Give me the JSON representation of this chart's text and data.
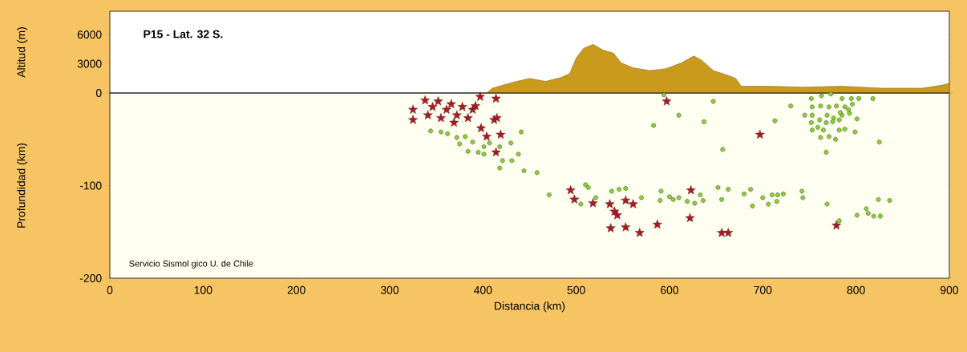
{
  "chart_data": [
    {
      "type": "area",
      "title": "P15 - Lat. 32 S.",
      "ylabel": "Altitud (m)",
      "color": "#c99a1c",
      "x": [
        404,
        410,
        432,
        450,
        467,
        484,
        493,
        500,
        508,
        518,
        529,
        540,
        548,
        561,
        579,
        596,
        613,
        626,
        634,
        647,
        660,
        671,
        677,
        707,
        742,
        785,
        828,
        871,
        892,
        900
      ],
      "values": [
        0,
        500,
        1100,
        1500,
        1200,
        1600,
        2000,
        3600,
        4600,
        5000,
        4400,
        4100,
        3100,
        2600,
        2300,
        2500,
        3100,
        3800,
        3400,
        2300,
        1900,
        1500,
        700,
        700,
        600,
        700,
        500,
        500,
        800,
        1000
      ],
      "xlim": [
        0,
        900
      ],
      "ylim": [
        0,
        8400
      ],
      "yticks": [
        0,
        3000,
        6000
      ],
      "tick_labels": "y"
    },
    {
      "type": "scatter",
      "ylabel": "Profundidad (km)",
      "xlabel": "Distancia (km)",
      "annotations": [
        "Servicio Sismol gico U. de Chile"
      ],
      "xlim": [
        0,
        900
      ],
      "ylim": [
        -200,
        0
      ],
      "xticks": [
        0,
        100,
        200,
        300,
        400,
        500,
        600,
        700,
        800,
        900
      ],
      "yticks": [
        -200,
        -100,
        {
          "value": 0,
          "label": null
        }
      ],
      "series": [
        {
          "color": "#8fcf3c",
          "marker": "circle",
          "x": [
            344,
            355,
            362,
            372,
            375,
            381,
            384,
            389,
            395,
            401,
            401,
            407,
            418,
            421,
            430,
            438,
            431,
            441,
            418,
            444,
            458,
            471,
            510,
            513,
            521,
            538,
            546,
            553,
            570,
            505,
            591,
            590,
            600,
            604,
            610,
            619,
            627,
            633,
            636,
            652,
            656,
            663,
            680,
            687,
            689,
            700,
            706,
            710,
            716,
            722,
            715,
            742,
            743,
            769,
            801,
            811,
            813,
            819,
            826,
            824,
            836,
            782,
            647,
            610,
            583,
            637,
            657,
            594,
            730,
            713,
            768,
            825,
            818,
            799,
            752,
            763,
            773,
            785,
            795,
            803,
            753,
            762,
            771,
            779,
            788,
            796,
            745,
            753,
            761,
            769,
            776,
            785,
            793,
            801,
            752,
            759,
            768,
            775,
            782,
            753,
            765,
            782,
            788,
            762,
            771,
            778,
            792,
            783
          ],
          "values": [
            -41,
            -42,
            -44,
            -48,
            -55,
            -47,
            -63,
            -53,
            -64,
            -58,
            -66,
            -54,
            -58,
            -73,
            -54,
            -66,
            -73,
            -42,
            -81,
            -84,
            -86,
            -110,
            -99,
            -102,
            -113,
            -106,
            -104,
            -103,
            -113,
            -120,
            -106,
            -116,
            -112,
            -115,
            -113,
            -117,
            -119,
            -110,
            -116,
            -102,
            -115,
            -104,
            -109,
            -104,
            -122,
            -113,
            -120,
            -110,
            -110,
            -109,
            -117,
            -106,
            -113,
            -120,
            -132,
            -125,
            -130,
            -133,
            -133,
            -115,
            -116,
            -138,
            -9,
            -24,
            -35,
            -31,
            -61,
            -2,
            -14,
            -30,
            -64,
            -53,
            -6,
            -42,
            -6,
            -3,
            -1,
            -6,
            -6,
            -6,
            -15,
            -14,
            -15,
            -14,
            -15,
            -12,
            -24,
            -24,
            -29,
            -24,
            -27,
            -24,
            -22,
            -28,
            -32,
            -37,
            -32,
            -31,
            -29,
            -40,
            -40,
            -40,
            -39,
            -48,
            -47,
            -50,
            -18,
            -21
          ]
        },
        {
          "color": "#a51c24",
          "marker": "star",
          "x": [
            325,
            325,
            338,
            341,
            346,
            352,
            355,
            361,
            366,
            369,
            372,
            378,
            384,
            389,
            397,
            392,
            398,
            404,
            412,
            415,
            419,
            414,
            414,
            494,
            498,
            518,
            536,
            541,
            544,
            553,
            561,
            537,
            553,
            568,
            587,
            623,
            622,
            656,
            663,
            597,
            697,
            779
          ],
          "values": [
            -18,
            -29,
            -8,
            -24,
            -15,
            -9,
            -27,
            -18,
            -12,
            -32,
            -24,
            -15,
            -27,
            -18,
            -4,
            -14,
            -38,
            -47,
            -29,
            -27,
            -45,
            -64,
            -6,
            -105,
            -115,
            -119,
            -120,
            -128,
            -132,
            -116,
            -120,
            -146,
            -145,
            -151,
            -142,
            -105,
            -135,
            -151,
            -151,
            -9,
            -45,
            -143
          ]
        }
      ]
    }
  ]
}
